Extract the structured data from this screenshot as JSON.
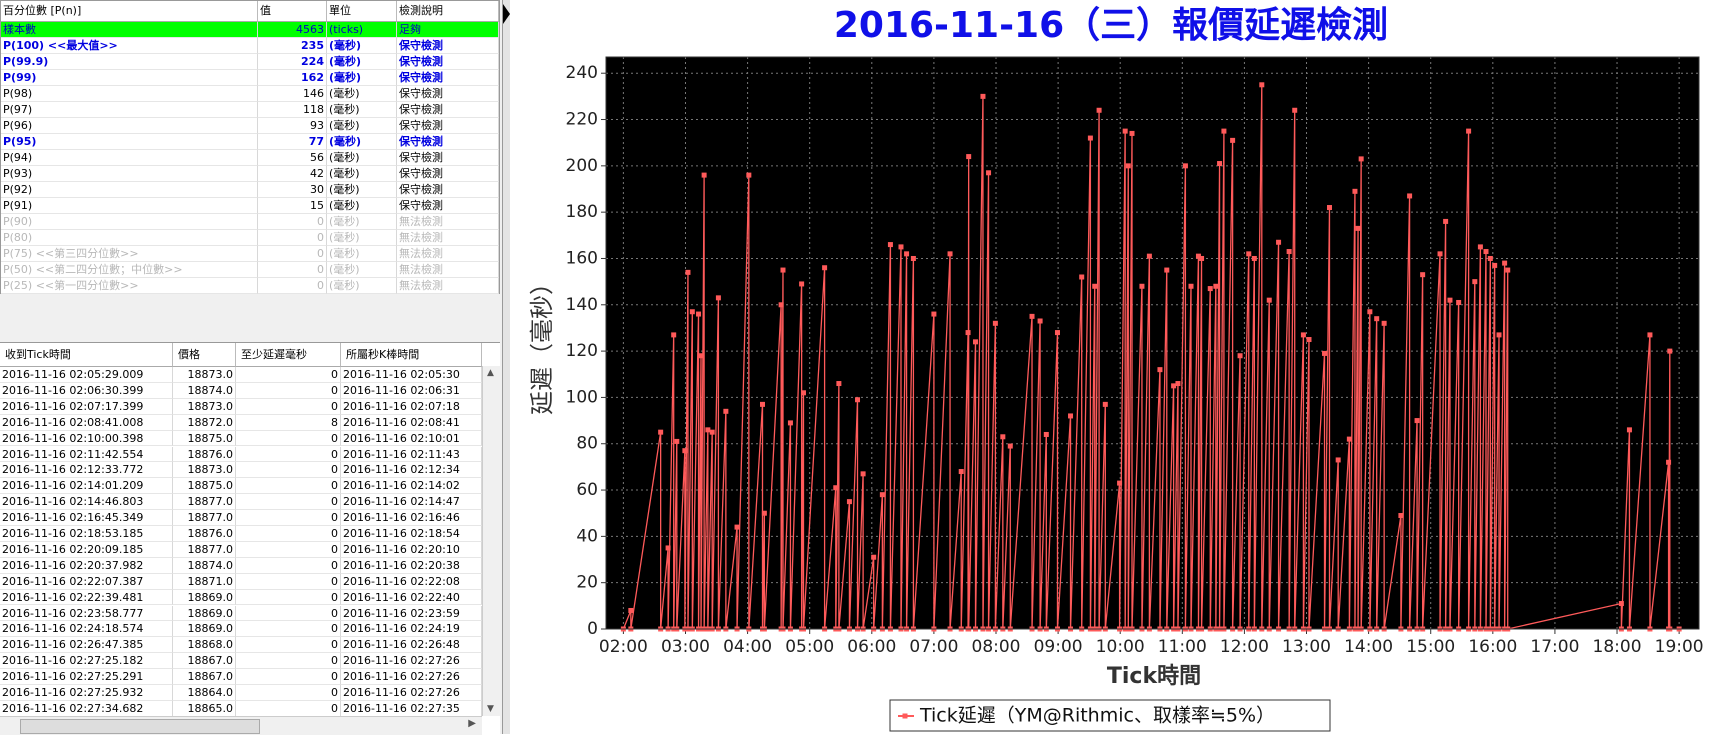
{
  "percentile_table": {
    "headers": [
      "百分位數 [P(n)]",
      "值",
      "單位",
      "檢測說明"
    ],
    "rows": [
      [
        "樣本數",
        4563,
        "(ticks)",
        "足夠"
      ],
      [
        "P(100)  <<最大值>>",
        235,
        "(毫秒)",
        "保守檢測"
      ],
      [
        "P(99.9)",
        224,
        "(毫秒)",
        "保守檢測"
      ],
      [
        "P(99)",
        162,
        "(毫秒)",
        "保守檢測"
      ],
      [
        "P(98)",
        146,
        "(毫秒)",
        "保守檢測"
      ],
      [
        "P(97)",
        118,
        "(毫秒)",
        "保守檢測"
      ],
      [
        "P(96)",
        93,
        "(毫秒)",
        "保守檢測"
      ],
      [
        "P(95)",
        77,
        "(毫秒)",
        "保守檢測"
      ],
      [
        "P(94)",
        56,
        "(毫秒)",
        "保守檢測"
      ],
      [
        "P(93)",
        42,
        "(毫秒)",
        "保守檢測"
      ],
      [
        "P(92)",
        30,
        "(毫秒)",
        "保守檢測"
      ],
      [
        "P(91)",
        15,
        "(毫秒)",
        "保守檢測"
      ],
      [
        "P(90)",
        0,
        "(毫秒)",
        "無法檢測"
      ],
      [
        "P(80)",
        0,
        "(毫秒)",
        "無法檢測"
      ],
      [
        "P(75)  <<第三四分位數>>",
        0,
        "(毫秒)",
        "無法檢測"
      ],
      [
        "P(50)  <<第二四分位數；中位數>>",
        0,
        "(毫秒)",
        "無法檢測"
      ],
      [
        "P(25)  <<第一四分位數>>",
        0,
        "(毫秒)",
        "無法檢測"
      ]
    ]
  },
  "tick_table": {
    "headers": [
      "收到Tick時間",
      "價格",
      "至少延遲毫秒",
      "所屬秒K棒時間"
    ],
    "rows": [
      [
        "2016-11-16 02:05:29.009",
        "18873.0",
        0,
        "2016-11-16 02:05:30"
      ],
      [
        "2016-11-16 02:06:30.399",
        "18874.0",
        0,
        "2016-11-16 02:06:31"
      ],
      [
        "2016-11-16 02:07:17.399",
        "18873.0",
        0,
        "2016-11-16 02:07:18"
      ],
      [
        "2016-11-16 02:08:41.008",
        "18872.0",
        8,
        "2016-11-16 02:08:41"
      ],
      [
        "2016-11-16 02:10:00.398",
        "18875.0",
        0,
        "2016-11-16 02:10:01"
      ],
      [
        "2016-11-16 02:11:42.554",
        "18876.0",
        0,
        "2016-11-16 02:11:43"
      ],
      [
        "2016-11-16 02:12:33.772",
        "18873.0",
        0,
        "2016-11-16 02:12:34"
      ],
      [
        "2016-11-16 02:14:01.209",
        "18875.0",
        0,
        "2016-11-16 02:14:02"
      ],
      [
        "2016-11-16 02:14:46.803",
        "18877.0",
        0,
        "2016-11-16 02:14:47"
      ],
      [
        "2016-11-16 02:16:45.349",
        "18877.0",
        0,
        "2016-11-16 02:16:46"
      ],
      [
        "2016-11-16 02:18:53.185",
        "18876.0",
        0,
        "2016-11-16 02:18:54"
      ],
      [
        "2016-11-16 02:20:09.185",
        "18877.0",
        0,
        "2016-11-16 02:20:10"
      ],
      [
        "2016-11-16 02:20:37.982",
        "18874.0",
        0,
        "2016-11-16 02:20:38"
      ],
      [
        "2016-11-16 02:22:07.387",
        "18871.0",
        0,
        "2016-11-16 02:22:08"
      ],
      [
        "2016-11-16 02:22:39.481",
        "18869.0",
        0,
        "2016-11-16 02:22:40"
      ],
      [
        "2016-11-16 02:23:58.777",
        "18869.0",
        0,
        "2016-11-16 02:23:59"
      ],
      [
        "2016-11-16 02:24:18.574",
        "18869.0",
        0,
        "2016-11-16 02:24:19"
      ],
      [
        "2016-11-16 02:26:47.385",
        "18868.0",
        0,
        "2016-11-16 02:26:48"
      ],
      [
        "2016-11-16 02:27:25.182",
        "18867.0",
        0,
        "2016-11-16 02:27:26"
      ],
      [
        "2016-11-16 02:27:25.291",
        "18867.0",
        0,
        "2016-11-16 02:27:26"
      ],
      [
        "2016-11-16 02:27:25.932",
        "18864.0",
        0,
        "2016-11-16 02:27:26"
      ],
      [
        "2016-11-16 02:27:34.682",
        "18865.0",
        0,
        "2016-11-16 02:27:35"
      ]
    ]
  },
  "chart_data": {
    "type": "line",
    "title": "2016-11-16（三）報價延遲檢測",
    "x_label": "Tick時間",
    "y_label": "延遲（毫秒）",
    "xlim": [
      1.72,
      19.32
    ],
    "ylim": [
      0,
      247
    ],
    "grid": true,
    "background": "#000000",
    "xticks": [
      {
        "value": 2,
        "label": "02:00"
      },
      {
        "value": 3,
        "label": "03:00"
      },
      {
        "value": 4,
        "label": "04:00"
      },
      {
        "value": 5,
        "label": "05:00"
      },
      {
        "value": 6,
        "label": "06:00"
      },
      {
        "value": 7,
        "label": "07:00"
      },
      {
        "value": 8,
        "label": "08:00"
      },
      {
        "value": 9,
        "label": "09:00"
      },
      {
        "value": 10,
        "label": "10:00"
      },
      {
        "value": 11,
        "label": "11:00"
      },
      {
        "value": 12,
        "label": "12:00"
      },
      {
        "value": 13,
        "label": "13:00"
      },
      {
        "value": 14,
        "label": "14:00"
      },
      {
        "value": 15,
        "label": "15:00"
      },
      {
        "value": 16,
        "label": "16:00"
      },
      {
        "value": 17,
        "label": "17:00"
      },
      {
        "value": 18,
        "label": "18:00"
      },
      {
        "value": 19,
        "label": "19:00"
      }
    ],
    "yticks": [
      0,
      20,
      40,
      60,
      80,
      100,
      120,
      140,
      160,
      180,
      200,
      220,
      240
    ],
    "x": [
      2.0,
      2.12,
      2.12,
      2.6,
      2.6,
      2.72,
      2.72,
      2.81,
      2.81,
      2.86,
      2.86,
      2.99,
      2.99,
      3.04,
      3.04,
      3.11,
      3.11,
      3.21,
      3.21,
      3.25,
      3.25,
      3.3,
      3.3,
      3.36,
      3.36,
      3.43,
      3.43,
      3.53,
      3.53,
      3.65,
      3.65,
      3.83,
      3.83,
      4.02,
      4.02,
      4.24,
      4.24,
      4.27,
      4.27,
      4.54,
      4.54,
      4.57,
      4.57,
      4.69,
      4.69,
      4.87,
      4.87,
      4.9,
      4.9,
      5.24,
      5.24,
      5.42,
      5.42,
      5.47,
      5.47,
      5.64,
      5.64,
      5.77,
      5.77,
      5.86,
      5.86,
      6.03,
      6.03,
      6.17,
      6.17,
      6.3,
      6.3,
      6.47,
      6.47,
      6.56,
      6.56,
      6.67,
      6.67,
      7.0,
      7.0,
      7.26,
      7.26,
      7.44,
      7.44,
      7.55,
      7.55,
      7.56,
      7.56,
      7.67,
      7.67,
      7.79,
      7.79,
      7.88,
      7.88,
      7.99,
      7.99,
      8.11,
      8.11,
      8.23,
      8.23,
      8.58,
      8.58,
      8.71,
      8.71,
      8.81,
      8.81,
      8.99,
      8.99,
      9.2,
      9.2,
      9.38,
      9.38,
      9.52,
      9.52,
      9.59,
      9.59,
      9.66,
      9.66,
      9.76,
      9.76,
      9.99,
      9.99,
      10.08,
      10.08,
      10.13,
      10.13,
      10.19,
      10.19,
      10.35,
      10.35,
      10.47,
      10.47,
      10.64,
      10.64,
      10.75,
      10.75,
      10.86,
      10.86,
      10.93,
      10.93,
      11.05,
      11.05,
      11.14,
      11.14,
      11.26,
      11.26,
      11.31,
      11.31,
      11.45,
      11.45,
      11.54,
      11.54,
      11.6,
      11.6,
      11.67,
      11.67,
      11.81,
      11.81,
      11.93,
      11.93,
      12.07,
      12.07,
      12.16,
      12.16,
      12.28,
      12.28,
      12.4,
      12.4,
      12.55,
      12.55,
      12.72,
      12.72,
      12.81,
      12.81,
      12.95,
      12.95,
      13.04,
      13.04,
      13.29,
      13.29,
      13.37,
      13.37,
      13.51,
      13.51,
      13.69,
      13.69,
      13.78,
      13.78,
      13.83,
      13.83,
      13.88,
      13.88,
      14.02,
      14.02,
      14.13,
      14.13,
      14.25,
      14.25,
      14.52,
      14.52,
      14.66,
      14.66,
      14.78,
      14.78,
      14.87,
      14.87,
      15.15,
      15.15,
      15.24,
      15.24,
      15.31,
      15.31,
      15.45,
      15.45,
      15.61,
      15.61,
      15.71,
      15.71,
      15.8,
      15.8,
      15.89,
      15.89,
      15.96,
      15.96,
      16.03,
      16.03,
      16.1,
      16.1,
      16.19,
      16.19,
      16.24,
      16.24,
      18.07,
      18.07,
      18.2,
      18.2,
      18.53,
      18.53,
      18.83,
      18.83,
      18.85,
      18.85,
      19.0
    ],
    "series": [
      {
        "name": "Tick延遲（YM@Rithmic、取樣率≒5%）",
        "color": "#ff5a5a",
        "values": [
          0,
          8,
          0,
          85,
          0,
          35,
          0,
          127,
          0,
          81,
          0,
          77,
          0,
          154,
          0,
          137,
          0,
          136,
          0,
          118,
          0,
          196,
          0,
          86,
          0,
          85,
          0,
          143,
          0,
          94,
          0,
          44,
          0,
          196,
          0,
          97,
          0,
          50,
          0,
          140,
          0,
          155,
          0,
          89,
          0,
          149,
          0,
          102,
          0,
          156,
          0,
          61,
          0,
          106,
          0,
          55,
          0,
          99,
          0,
          67,
          0,
          31,
          0,
          58,
          0,
          166,
          0,
          165,
          0,
          162,
          0,
          160,
          0,
          136,
          0,
          162,
          0,
          68,
          0,
          128,
          0,
          204,
          0,
          124,
          0,
          230,
          0,
          197,
          0,
          132,
          0,
          83,
          0,
          79,
          0,
          135,
          0,
          133,
          0,
          84,
          0,
          128,
          0,
          92,
          0,
          152,
          0,
          212,
          0,
          148,
          0,
          224,
          0,
          97,
          0,
          63,
          0,
          215,
          0,
          200,
          0,
          214,
          0,
          148,
          0,
          161,
          0,
          112,
          0,
          155,
          0,
          105,
          0,
          106,
          0,
          200,
          0,
          148,
          0,
          161,
          0,
          160,
          0,
          147,
          0,
          148,
          0,
          201,
          0,
          215,
          0,
          211,
          0,
          118,
          0,
          162,
          0,
          160,
          0,
          235,
          0,
          142,
          0,
          167,
          0,
          163,
          0,
          224,
          0,
          127,
          0,
          125,
          0,
          119,
          0,
          182,
          0,
          73,
          0,
          82,
          0,
          189,
          0,
          173,
          0,
          203,
          0,
          137,
          0,
          134,
          0,
          132,
          0,
          49,
          0,
          187,
          0,
          90,
          0,
          153,
          0,
          162,
          0,
          176,
          0,
          142,
          0,
          141,
          0,
          215,
          0,
          150,
          0,
          165,
          0,
          163,
          0,
          160,
          0,
          157,
          0,
          127,
          0,
          158,
          0,
          155,
          0,
          11,
          0,
          86,
          0,
          127,
          0,
          72,
          0,
          120,
          0,
          0
        ]
      }
    ]
  }
}
